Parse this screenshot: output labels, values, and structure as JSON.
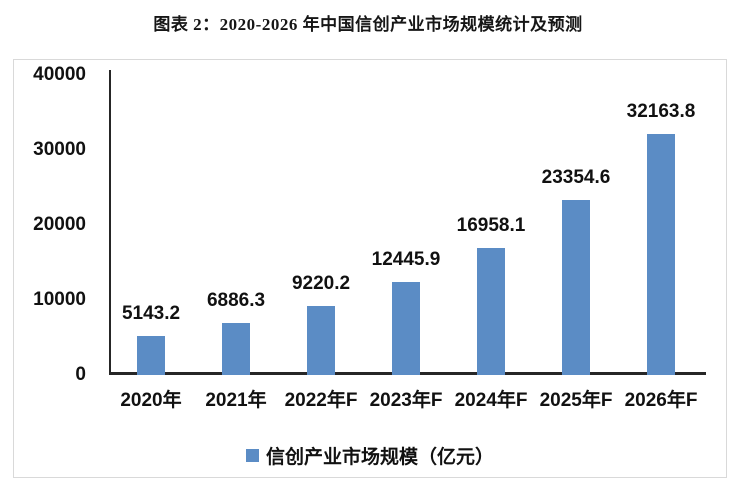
{
  "title": "图表 2：2020-2026 年中国信创产业市场规模统计及预测",
  "chart_data": {
    "type": "bar",
    "categories": [
      "2020年",
      "2021年",
      "2022年F",
      "2023年F",
      "2024年F",
      "2025年F",
      "2026年F"
    ],
    "values": [
      5143.2,
      6886.3,
      9220.2,
      12445.9,
      16958.1,
      23354.6,
      32163.8
    ],
    "value_labels": [
      "5143.2",
      "6886.3",
      "9220.2",
      "12445.9",
      "16958.1",
      "23354.6",
      "32163.8"
    ],
    "title": "图表 2：2020-2026 年中国信创产业市场规模统计及预测",
    "xlabel": "",
    "ylabel": "",
    "ylim": [
      0,
      40000
    ],
    "yticks": [
      0,
      10000,
      20000,
      30000,
      40000
    ],
    "ytick_labels": [
      "0",
      "10000",
      "20000",
      "30000",
      "40000"
    ],
    "grid": false,
    "legend": "信创产业市场规模（亿元）",
    "legend_position": "bottom",
    "bar_color": "#5B8CC5"
  },
  "colors": {
    "bar": "#5B8CC5",
    "axis": "#262626",
    "text": "#111111",
    "box_border": "#d9d9d9",
    "background": "#ffffff"
  }
}
